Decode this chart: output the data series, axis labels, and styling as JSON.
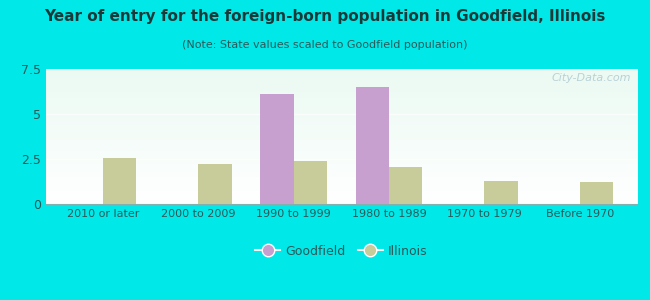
{
  "title": "Year of entry for the foreign-born population in Goodfield, Illinois",
  "subtitle": "(Note: State values scaled to Goodfield population)",
  "categories": [
    "2010 or later",
    "2000 to 2009",
    "1990 to 1999",
    "1980 to 1989",
    "1970 to 1979",
    "Before 1970"
  ],
  "goodfield_values": [
    0,
    0,
    6.1,
    6.5,
    0,
    0
  ],
  "illinois_values": [
    2.55,
    2.2,
    2.4,
    2.05,
    1.3,
    1.25
  ],
  "goodfield_color": "#c8a0d0",
  "illinois_color": "#c8cc9a",
  "background_outer": "#00e8e8",
  "ylim": [
    0,
    7.5
  ],
  "yticks": [
    0,
    2.5,
    5,
    7.5
  ],
  "bar_width": 0.35,
  "legend_goodfield": "Goodfield",
  "legend_illinois": "Illinois",
  "watermark": "City-Data.com",
  "title_color": "#1a3a3a",
  "subtitle_color": "#2a5a5a",
  "tick_color": "#2a5a5a"
}
